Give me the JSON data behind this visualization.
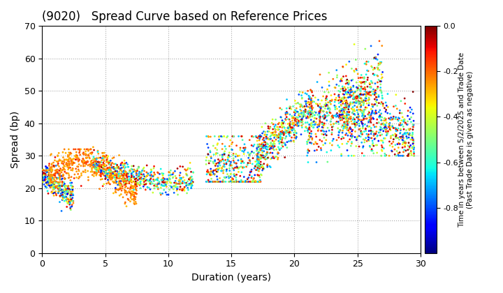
{
  "title": "(9020)   Spread Curve based on Reference Prices",
  "xlabel": "Duration (years)",
  "ylabel": "Spread (bp)",
  "colorbar_label": "Time in years between 5/2/2025 and Trade Date\n(Past Trade Date is given as negative)",
  "xlim": [
    0,
    30
  ],
  "ylim": [
    0,
    70
  ],
  "xticks": [
    0,
    5,
    10,
    15,
    20,
    25,
    30
  ],
  "yticks": [
    0,
    10,
    20,
    30,
    40,
    50,
    60,
    70
  ],
  "clim": [
    -1.0,
    0.0
  ],
  "cticks": [
    0.0,
    -0.2,
    -0.4,
    -0.6,
    -0.8
  ],
  "cmap": "jet",
  "background_color": "#ffffff",
  "grid_color": "#aaaaaa",
  "point_size": 4,
  "seed": 42
}
